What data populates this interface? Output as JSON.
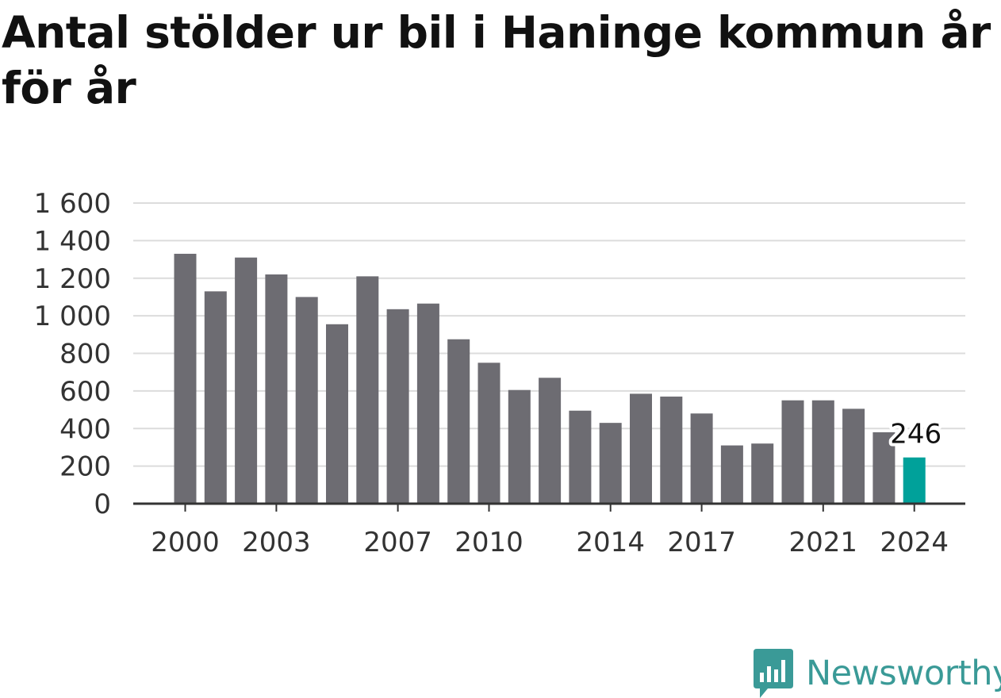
{
  "chart_data": {
    "type": "bar",
    "title": "Antal stölder ur bil i Haninge kommun år för år",
    "xlabel": "",
    "ylabel": "",
    "categories": [
      2000,
      2001,
      2002,
      2003,
      2004,
      2005,
      2006,
      2007,
      2008,
      2009,
      2010,
      2011,
      2012,
      2013,
      2014,
      2015,
      2016,
      2017,
      2018,
      2019,
      2020,
      2021,
      2022,
      2023,
      2024
    ],
    "values": [
      1330,
      1130,
      1310,
      1220,
      1100,
      955,
      1210,
      1035,
      1065,
      875,
      750,
      605,
      670,
      495,
      430,
      585,
      570,
      480,
      310,
      320,
      550,
      550,
      505,
      380,
      246
    ],
    "ylim": [
      0,
      1600
    ],
    "yticks": [
      0,
      200,
      400,
      600,
      800,
      1000,
      1200,
      1400,
      1600
    ],
    "ytick_labels": [
      "0",
      "200",
      "400",
      "600",
      "800",
      "1 000",
      "1 200",
      "1 400",
      "1 600"
    ],
    "xticks": [
      2000,
      2003,
      2007,
      2010,
      2014,
      2017,
      2021,
      2024
    ],
    "xtick_labels": [
      "2000",
      "2003",
      "2007",
      "2010",
      "2014",
      "2017",
      "2021",
      "2024"
    ],
    "highlight": {
      "category": 2024,
      "label": "246",
      "color": "#00a19a"
    },
    "bar_color": "#6d6c72",
    "grid": true,
    "legend": "none"
  },
  "branding": {
    "logo_text": "Newsworthy",
    "logo_icon": "newsworthy-chart-icon",
    "logo_color": "#3a9a97"
  }
}
